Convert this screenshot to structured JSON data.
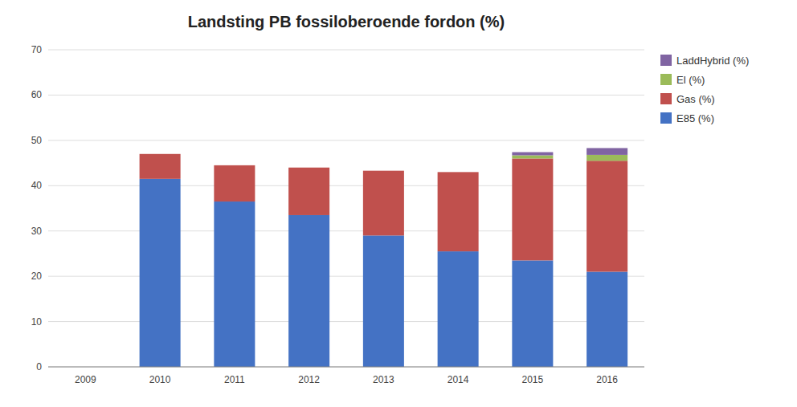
{
  "chart_data": {
    "type": "bar",
    "stacked": true,
    "title": "Landsting PB fossiloberoende fordon (%)",
    "categories": [
      "2009",
      "2010",
      "2011",
      "2012",
      "2013",
      "2014",
      "2015",
      "2016"
    ],
    "series": [
      {
        "name": "E85 (%)",
        "color": "#4472C4",
        "values": [
          0,
          41.5,
          36.5,
          33.5,
          29.0,
          25.5,
          23.5,
          21.0
        ]
      },
      {
        "name": "Gas (%)",
        "color": "#C0504D",
        "values": [
          0,
          5.5,
          8.0,
          10.5,
          14.3,
          17.5,
          22.5,
          24.5
        ]
      },
      {
        "name": "El (%)",
        "color": "#9BBB59",
        "values": [
          0,
          0.0,
          0.0,
          0.0,
          0.0,
          0.0,
          0.7,
          1.3
        ]
      },
      {
        "name": "LaddHybrid (%)",
        "color": "#8064A2",
        "values": [
          0,
          0.0,
          0.0,
          0.0,
          0.0,
          0.0,
          0.7,
          1.5
        ]
      }
    ],
    "ylim": [
      0,
      70
    ],
    "yticks": [
      0,
      10,
      20,
      30,
      40,
      50,
      60,
      70
    ],
    "grid": true,
    "legend": "right"
  }
}
